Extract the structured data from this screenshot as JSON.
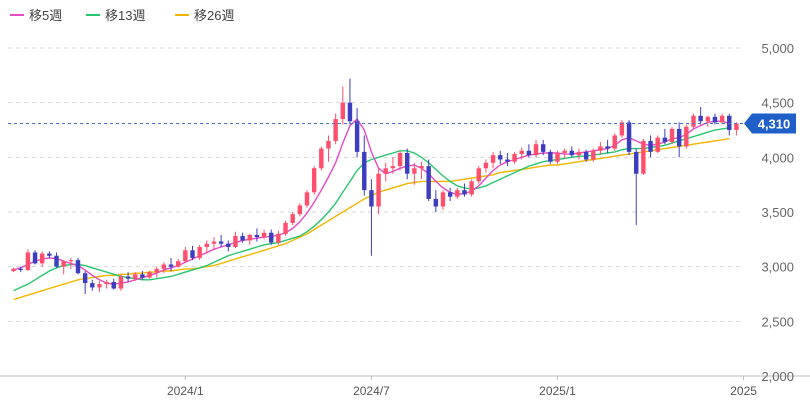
{
  "chart_data": {
    "type": "candlestick",
    "legend": [
      {
        "name": "移5週",
        "color": "#e64ac8"
      },
      {
        "name": "移13週",
        "color": "#28c76f"
      },
      {
        "name": "移26週",
        "color": "#f2b600"
      }
    ],
    "yticks": [
      2000,
      2500,
      3000,
      3500,
      4000,
      4500,
      5000
    ],
    "ytick_labels": [
      "2,000",
      "2,500",
      "3,000",
      "3,500",
      "4,000",
      "4,500",
      "5,000"
    ],
    "ylim": [
      2000,
      5000
    ],
    "xticks": [
      {
        "label": "2024/1",
        "index": 24
      },
      {
        "label": "2024/7",
        "index": 50
      },
      {
        "label": "2025/1",
        "index": 76
      },
      {
        "label": "2025",
        "index": 102
      }
    ],
    "current_price": 4310,
    "current_price_label": "4,310",
    "up_color": "#ff4f6e",
    "down_color": "#3d3dbf",
    "grid": true,
    "candles": [
      [
        2960,
        2990,
        2950,
        2980
      ],
      [
        2980,
        3000,
        2950,
        2970
      ],
      [
        2970,
        3160,
        2960,
        3130
      ],
      [
        3130,
        3150,
        3020,
        3030
      ],
      [
        3030,
        3140,
        3000,
        3120
      ],
      [
        3120,
        3140,
        3080,
        3100
      ],
      [
        3100,
        3130,
        2990,
        3000
      ],
      [
        3000,
        3060,
        2930,
        3050
      ],
      [
        3050,
        3080,
        2980,
        3060
      ],
      [
        3060,
        3080,
        2930,
        2940
      ],
      [
        2940,
        2960,
        2750,
        2850
      ],
      [
        2850,
        2880,
        2780,
        2810
      ],
      [
        2810,
        2870,
        2770,
        2840
      ],
      [
        2840,
        2880,
        2800,
        2860
      ],
      [
        2860,
        2890,
        2790,
        2800
      ],
      [
        2800,
        2930,
        2780,
        2910
      ],
      [
        2910,
        2950,
        2860,
        2890
      ],
      [
        2890,
        2950,
        2870,
        2930
      ],
      [
        2930,
        2960,
        2880,
        2900
      ],
      [
        2900,
        2960,
        2890,
        2950
      ],
      [
        2950,
        3000,
        2900,
        2980
      ],
      [
        2980,
        3040,
        2940,
        3020
      ],
      [
        3020,
        3080,
        2960,
        3000
      ],
      [
        3000,
        3070,
        2990,
        3050
      ],
      [
        3050,
        3180,
        3040,
        3150
      ],
      [
        3150,
        3190,
        3060,
        3080
      ],
      [
        3080,
        3200,
        3060,
        3180
      ],
      [
        3180,
        3240,
        3120,
        3210
      ],
      [
        3210,
        3270,
        3160,
        3230
      ],
      [
        3230,
        3290,
        3180,
        3210
      ],
      [
        3210,
        3240,
        3140,
        3180
      ],
      [
        3180,
        3320,
        3170,
        3280
      ],
      [
        3280,
        3310,
        3220,
        3240
      ],
      [
        3240,
        3300,
        3200,
        3290
      ],
      [
        3290,
        3350,
        3230,
        3270
      ],
      [
        3270,
        3340,
        3250,
        3310
      ],
      [
        3310,
        3340,
        3200,
        3220
      ],
      [
        3220,
        3330,
        3200,
        3300
      ],
      [
        3300,
        3420,
        3280,
        3400
      ],
      [
        3400,
        3500,
        3380,
        3480
      ],
      [
        3480,
        3580,
        3460,
        3560
      ],
      [
        3560,
        3700,
        3540,
        3680
      ],
      [
        3680,
        3920,
        3660,
        3900
      ],
      [
        3900,
        4100,
        3880,
        4080
      ],
      [
        4080,
        4200,
        3960,
        4150
      ],
      [
        4150,
        4400,
        4120,
        4350
      ],
      [
        4350,
        4650,
        4300,
        4500
      ],
      [
        4500,
        4720,
        4300,
        4330
      ],
      [
        4330,
        4450,
        4000,
        4050
      ],
      [
        4050,
        4200,
        3650,
        3700
      ],
      [
        3700,
        3800,
        3100,
        3550
      ],
      [
        3550,
        3900,
        3480,
        3850
      ],
      [
        3850,
        3950,
        3780,
        3900
      ],
      [
        3900,
        4000,
        3850,
        3920
      ],
      [
        3920,
        4060,
        3880,
        4040
      ],
      [
        4040,
        4080,
        3800,
        3850
      ],
      [
        3850,
        3950,
        3750,
        3900
      ],
      [
        3900,
        3960,
        3800,
        3920
      ],
      [
        3920,
        3980,
        3600,
        3620
      ],
      [
        3620,
        3700,
        3500,
        3550
      ],
      [
        3550,
        3700,
        3520,
        3680
      ],
      [
        3680,
        3720,
        3600,
        3640
      ],
      [
        3640,
        3720,
        3620,
        3700
      ],
      [
        3700,
        3760,
        3640,
        3660
      ],
      [
        3660,
        3800,
        3640,
        3780
      ],
      [
        3780,
        3920,
        3760,
        3900
      ],
      [
        3900,
        3980,
        3860,
        3950
      ],
      [
        3950,
        4050,
        3900,
        4020
      ],
      [
        4020,
        4060,
        3940,
        3980
      ],
      [
        3980,
        4040,
        3920,
        3960
      ],
      [
        3960,
        4050,
        3940,
        4030
      ],
      [
        4030,
        4090,
        3980,
        4060
      ],
      [
        4060,
        4120,
        4000,
        4020
      ],
      [
        4020,
        4160,
        4000,
        4120
      ],
      [
        4120,
        4160,
        4020,
        4050
      ],
      [
        4050,
        4070,
        3940,
        3960
      ],
      [
        3960,
        4060,
        3940,
        4040
      ],
      [
        4040,
        4080,
        3990,
        4060
      ],
      [
        4060,
        4100,
        4000,
        4020
      ],
      [
        4020,
        4080,
        3980,
        4050
      ],
      [
        4050,
        4070,
        3960,
        3980
      ],
      [
        3980,
        4080,
        3960,
        4060
      ],
      [
        4060,
        4140,
        4020,
        4100
      ],
      [
        4100,
        4160,
        4040,
        4080
      ],
      [
        4080,
        4220,
        4060,
        4200
      ],
      [
        4200,
        4340,
        4180,
        4320
      ],
      [
        4320,
        4340,
        4020,
        4050
      ],
      [
        4050,
        4080,
        3380,
        3850
      ],
      [
        3850,
        4170,
        3840,
        4150
      ],
      [
        4150,
        4200,
        4000,
        4050
      ],
      [
        4050,
        4200,
        4040,
        4180
      ],
      [
        4180,
        4260,
        4120,
        4140
      ],
      [
        4140,
        4280,
        4120,
        4260
      ],
      [
        4260,
        4320,
        4000,
        4100
      ],
      [
        4100,
        4300,
        4080,
        4280
      ],
      [
        4280,
        4400,
        4260,
        4380
      ],
      [
        4380,
        4460,
        4300,
        4330
      ],
      [
        4330,
        4380,
        4280,
        4370
      ],
      [
        4370,
        4400,
        4300,
        4320
      ],
      [
        4320,
        4400,
        4300,
        4380
      ],
      [
        4380,
        4400,
        4200,
        4250
      ],
      [
        4250,
        4320,
        4200,
        4310
      ]
    ],
    "ma5": [
      2970,
      2990,
      3020,
      3050,
      3070,
      3080,
      3075,
      3050,
      3030,
      3010,
      2970,
      2920,
      2880,
      2850,
      2840,
      2850,
      2860,
      2880,
      2900,
      2920,
      2940,
      2970,
      2990,
      3010,
      3040,
      3070,
      3100,
      3130,
      3160,
      3180,
      3200,
      3220,
      3240,
      3250,
      3260,
      3270,
      3275,
      3290,
      3310,
      3350,
      3410,
      3490,
      3590,
      3700,
      3820,
      3950,
      4130,
      4290,
      4350,
      4250,
      4050,
      3900,
      3850,
      3870,
      3900,
      3920,
      3930,
      3900,
      3850,
      3780,
      3720,
      3680,
      3660,
      3670,
      3690,
      3740,
      3810,
      3880,
      3930,
      3960,
      3980,
      4000,
      4020,
      4030,
      4040,
      4040,
      4040,
      4030,
      4030,
      4040,
      4050,
      4060,
      4070,
      4080,
      4110,
      4160,
      4180,
      4150,
      4120,
      4110,
      4120,
      4140,
      4170,
      4180,
      4210,
      4260,
      4290,
      4320,
      4330,
      4330,
      4310
    ],
    "ma13": [
      2780,
      2810,
      2840,
      2880,
      2920,
      2960,
      2990,
      3010,
      3020,
      3020,
      3010,
      2990,
      2970,
      2950,
      2930,
      2910,
      2900,
      2890,
      2880,
      2880,
      2890,
      2900,
      2910,
      2930,
      2950,
      2970,
      2990,
      3010,
      3040,
      3070,
      3100,
      3120,
      3140,
      3160,
      3180,
      3200,
      3210,
      3220,
      3240,
      3260,
      3280,
      3320,
      3370,
      3430,
      3500,
      3580,
      3680,
      3780,
      3880,
      3950,
      3980,
      4000,
      4020,
      4040,
      4060,
      4060,
      4040,
      4000,
      3950,
      3890,
      3830,
      3780,
      3740,
      3720,
      3710,
      3720,
      3740,
      3770,
      3800,
      3830,
      3860,
      3890,
      3920,
      3940,
      3960,
      3970,
      3980,
      3990,
      4000,
      4010,
      4010,
      4020,
      4030,
      4040,
      4050,
      4070,
      4080,
      4080,
      4080,
      4090,
      4100,
      4110,
      4130,
      4150,
      4170,
      4190,
      4210,
      4230,
      4250,
      4260,
      4270
    ],
    "ma26": [
      2700,
      2720,
      2740,
      2760,
      2780,
      2800,
      2820,
      2840,
      2860,
      2880,
      2890,
      2900,
      2910,
      2920,
      2920,
      2930,
      2930,
      2940,
      2940,
      2950,
      2950,
      2960,
      2960,
      2970,
      2980,
      2980,
      2990,
      3000,
      3010,
      3030,
      3050,
      3070,
      3090,
      3110,
      3130,
      3150,
      3170,
      3190,
      3210,
      3240,
      3270,
      3300,
      3340,
      3380,
      3420,
      3460,
      3500,
      3540,
      3580,
      3620,
      3650,
      3680,
      3700,
      3720,
      3740,
      3760,
      3770,
      3780,
      3780,
      3780,
      3780,
      3780,
      3790,
      3800,
      3810,
      3820,
      3830,
      3840,
      3860,
      3870,
      3880,
      3890,
      3900,
      3910,
      3920,
      3930,
      3930,
      3940,
      3950,
      3960,
      3970,
      3980,
      3990,
      4000,
      4010,
      4020,
      4030,
      4040,
      4050,
      4060,
      4070,
      4080,
      4090,
      4100,
      4110,
      4120,
      4130,
      4140,
      4150,
      4160,
      4170
    ]
  }
}
